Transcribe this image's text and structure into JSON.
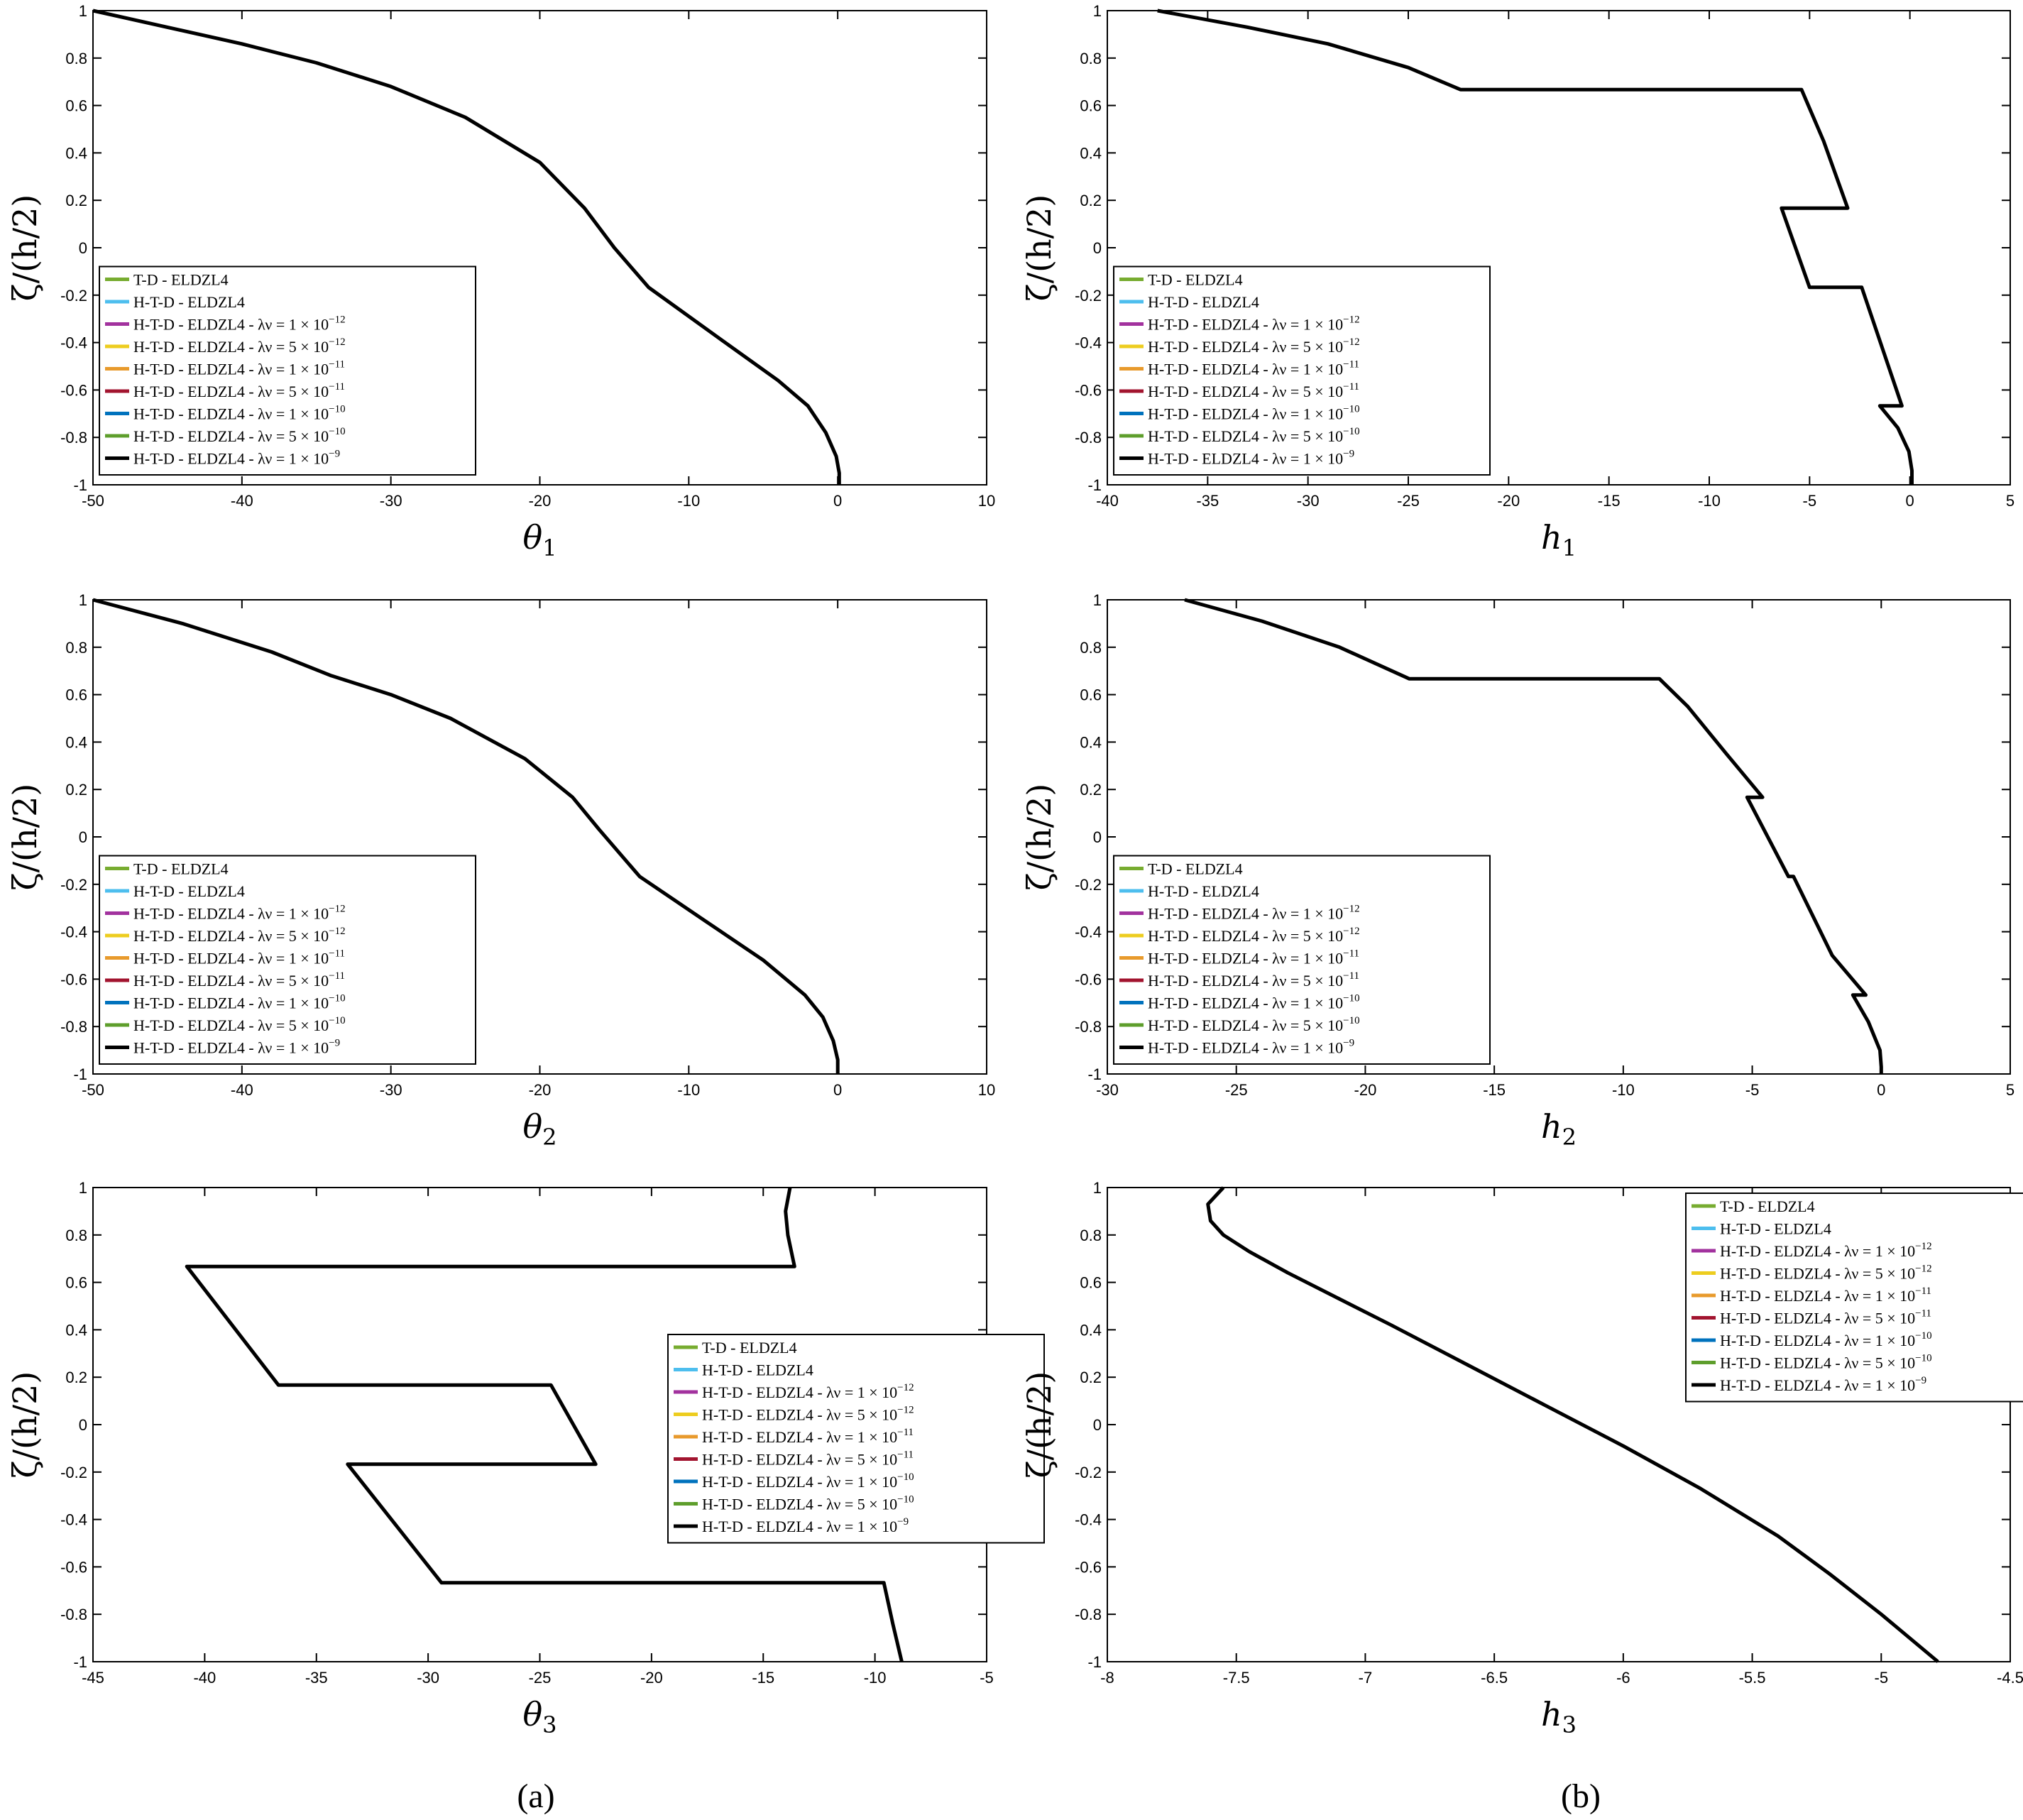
{
  "panel_labels": [
    "(a)",
    "(b)"
  ],
  "legend": {
    "entries": [
      {
        "label": "T-D - ELDZL4",
        "suffix": "",
        "exp": "",
        "color": "#77ac30"
      },
      {
        "label": "H-T-D - ELDZL4",
        "suffix": "",
        "exp": "",
        "color": "#4dbeee"
      },
      {
        "label": "H-T-D - ELDZL4 - λν = 1 × 10",
        "suffix": "",
        "exp": "−12",
        "color": "#a2329e"
      },
      {
        "label": "H-T-D - ELDZL4 - λν = 5 × 10",
        "suffix": "",
        "exp": "−12",
        "color": "#edcd1f"
      },
      {
        "label": "H-T-D - ELDZL4 - λν = 1 × 10",
        "suffix": "",
        "exp": "−11",
        "color": "#e89a2c"
      },
      {
        "label": "H-T-D - ELDZL4 - λν = 5 × 10",
        "suffix": "",
        "exp": "−11",
        "color": "#a2142f"
      },
      {
        "label": "H-T-D - ELDZL4 - λν = 1 × 10",
        "suffix": "",
        "exp": "−10",
        "color": "#0072bd"
      },
      {
        "label": "H-T-D - ELDZL4 - λν = 5 × 10",
        "suffix": "",
        "exp": "−10",
        "color": "#5e9e2c"
      },
      {
        "label": "H-T-D - ELDZL4 - λν = 1 × 10",
        "suffix": "",
        "exp": "−9",
        "color": "#000000"
      }
    ]
  },
  "chart_data": [
    {
      "type": "line",
      "xlabel": "θ",
      "xlabel_sub": "1",
      "ylabel": "ζ/(h/2)",
      "xlim": [
        -50,
        10
      ],
      "ylim": [
        -1,
        1
      ],
      "xticks": [
        -50,
        -40,
        -30,
        -20,
        -10,
        0,
        10
      ],
      "xtick_labels": [
        "-50",
        "-40",
        "-30",
        "-20",
        "-10",
        "0",
        "10"
      ],
      "yticks": [
        -1,
        -0.8,
        -0.6,
        -0.4,
        -0.2,
        0,
        0.2,
        0.4,
        0.6,
        0.8,
        1
      ],
      "ytick_labels": [
        "-1",
        "-0.8",
        "-0.6",
        "-0.4",
        "-0.2",
        "0",
        "0.2",
        "0.4",
        "0.6",
        "0.8",
        "1"
      ],
      "legend_position": "bottom-left",
      "series": [
        {
          "name": "H-T-D - ELDZL4 - λν = 1 × 10^-9",
          "color": "#000000",
          "x": [
            -50,
            -45,
            -40,
            -35,
            -30,
            -25,
            -20,
            -17,
            -15,
            -12.7,
            -8,
            -4,
            -2,
            -0.8,
            -0.1,
            0.1,
            0.1
          ],
          "y": [
            1,
            0.93,
            0.86,
            0.78,
            0.68,
            0.55,
            0.36,
            0.167,
            0.0,
            -0.167,
            -0.38,
            -0.56,
            -0.667,
            -0.78,
            -0.88,
            -0.95,
            -1
          ]
        }
      ]
    },
    {
      "type": "line",
      "xlabel": "h",
      "xlabel_sub": "1",
      "ylabel": "ζ/(h/2)",
      "xlim": [
        -40,
        5
      ],
      "ylim": [
        -1,
        1
      ],
      "xticks": [
        -40,
        -35,
        -30,
        -25,
        -20,
        -15,
        -10,
        -5,
        0,
        5
      ],
      "xtick_labels": [
        "-40",
        "-35",
        "-30",
        "-25",
        "-20",
        "-15",
        "-10",
        "-5",
        "0",
        "5"
      ],
      "yticks": [
        -1,
        -0.8,
        -0.6,
        -0.4,
        -0.2,
        0,
        0.2,
        0.4,
        0.6,
        0.8,
        1
      ],
      "ytick_labels": [
        "-1",
        "-0.8",
        "-0.6",
        "-0.4",
        "-0.2",
        "0",
        "0.2",
        "0.4",
        "0.6",
        "0.8",
        "1"
      ],
      "legend_position": "bottom-left",
      "series": [
        {
          "name": "H-T-D - ELDZL4 - λν = 1 × 10^-9",
          "color": "#000000",
          "x": [
            -37.5,
            -33,
            -29,
            -25,
            -22.4,
            -5.4,
            -4.3,
            -3.1,
            -6.4,
            -5,
            -2.4,
            -0.4,
            -1.5,
            -0.6,
            -0.05,
            0.1,
            0.1
          ],
          "y": [
            1,
            0.93,
            0.86,
            0.76,
            0.667,
            0.667,
            0.45,
            0.167,
            0.167,
            -0.167,
            -0.167,
            -0.667,
            -0.667,
            -0.76,
            -0.86,
            -0.94,
            -1
          ]
        }
      ]
    },
    {
      "type": "line",
      "xlabel": "θ",
      "xlabel_sub": "2",
      "ylabel": "ζ/(h/2)",
      "xlim": [
        -50,
        10
      ],
      "ylim": [
        -1,
        1
      ],
      "xticks": [
        -50,
        -40,
        -30,
        -20,
        -10,
        0,
        10
      ],
      "xtick_labels": [
        "-50",
        "-40",
        "-30",
        "-20",
        "-10",
        "0",
        "10"
      ],
      "yticks": [
        -1,
        -0.8,
        -0.6,
        -0.4,
        -0.2,
        0,
        0.2,
        0.4,
        0.6,
        0.8,
        1
      ],
      "ytick_labels": [
        "-1",
        "-0.8",
        "-0.6",
        "-0.4",
        "-0.2",
        "0",
        "0.2",
        "0.4",
        "0.6",
        "0.8",
        "1"
      ],
      "legend_position": "bottom-left",
      "series": [
        {
          "name": "H-T-D - ELDZL4 - λν = 1 × 10^-9",
          "color": "#000000",
          "x": [
            -50,
            -44,
            -38,
            -34,
            -30,
            -26,
            -21,
            -17.8,
            -16,
            -13.3,
            -9,
            -5,
            -2.2,
            -1,
            -0.3,
            0,
            0
          ],
          "y": [
            1,
            0.9,
            0.78,
            0.68,
            0.6,
            0.5,
            0.33,
            0.167,
            0.03,
            -0.167,
            -0.35,
            -0.52,
            -0.667,
            -0.76,
            -0.86,
            -0.94,
            -1
          ]
        }
      ]
    },
    {
      "type": "line",
      "xlabel": "h",
      "xlabel_sub": "2",
      "ylabel": "ζ/(h/2)",
      "xlim": [
        -30,
        5
      ],
      "ylim": [
        -1,
        1
      ],
      "xticks": [
        -30,
        -25,
        -20,
        -15,
        -10,
        -5,
        0,
        5
      ],
      "xtick_labels": [
        "-30",
        "-25",
        "-20",
        "-15",
        "-10",
        "-5",
        "0",
        "5"
      ],
      "yticks": [
        -1,
        -0.8,
        -0.6,
        -0.4,
        -0.2,
        0,
        0.2,
        0.4,
        0.6,
        0.8,
        1
      ],
      "ytick_labels": [
        "-1",
        "-0.8",
        "-0.6",
        "-0.4",
        "-0.2",
        "0",
        "0.2",
        "0.4",
        "0.6",
        "0.8",
        "1"
      ],
      "legend_position": "bottom-left",
      "series": [
        {
          "name": "H-T-D - ELDZL4 - λν = 1 × 10^-9",
          "color": "#000000",
          "x": [
            -27,
            -24,
            -21,
            -18.3,
            -8.6,
            -7.5,
            -6,
            -4.6,
            -5.2,
            -3.6,
            -3.4,
            -1.9,
            -0.6,
            -1.1,
            -0.5,
            -0.05,
            0,
            0
          ],
          "y": [
            1,
            0.91,
            0.8,
            0.667,
            0.667,
            0.55,
            0.35,
            0.167,
            0.167,
            -0.167,
            -0.167,
            -0.5,
            -0.667,
            -0.667,
            -0.78,
            -0.9,
            -0.97,
            -1
          ]
        }
      ]
    },
    {
      "type": "line",
      "xlabel": "θ",
      "xlabel_sub": "3",
      "ylabel": "ζ/(h/2)",
      "xlim": [
        -45,
        -5
      ],
      "ylim": [
        -1,
        1
      ],
      "xticks": [
        -45,
        -40,
        -35,
        -30,
        -25,
        -20,
        -15,
        -10,
        -5
      ],
      "xtick_labels": [
        "-45",
        "-40",
        "-35",
        "-30",
        "-25",
        "-20",
        "-15",
        "-10",
        "-5"
      ],
      "yticks": [
        -1,
        -0.8,
        -0.6,
        -0.4,
        -0.2,
        0,
        0.2,
        0.4,
        0.6,
        0.8,
        1
      ],
      "ytick_labels": [
        "-1",
        "-0.8",
        "-0.6",
        "-0.4",
        "-0.2",
        "0",
        "0.2",
        "0.4",
        "0.6",
        "0.8",
        "1"
      ],
      "legend_position": "right",
      "series": [
        {
          "name": "H-T-D - ELDZL4 - λν = 1 × 10^-9",
          "color": "#000000",
          "x": [
            -13.8,
            -14.0,
            -13.9,
            -13.6,
            -40.8,
            -36.7,
            -24.5,
            -22.5,
            -33.6,
            -29.4,
            -9.6,
            -9.2,
            -8.8
          ],
          "y": [
            1,
            0.9,
            0.8,
            0.667,
            0.667,
            0.167,
            0.167,
            -0.167,
            -0.167,
            -0.667,
            -0.667,
            -0.84,
            -1
          ]
        }
      ]
    },
    {
      "type": "line",
      "xlabel": "h",
      "xlabel_sub": "3",
      "ylabel": "ζ/(h/2)",
      "xlim": [
        -8,
        -4.5
      ],
      "ylim": [
        -1,
        1
      ],
      "xticks": [
        -8,
        -7.5,
        -7,
        -6.5,
        -6,
        -5.5,
        -5,
        -4.5
      ],
      "xtick_labels": [
        "-8",
        "-7.5",
        "-7",
        "-6.5",
        "-6",
        "-5.5",
        "-5",
        "-4.5"
      ],
      "yticks": [
        -1,
        -0.8,
        -0.6,
        -0.4,
        -0.2,
        0,
        0.2,
        0.4,
        0.6,
        0.8,
        1
      ],
      "ytick_labels": [
        "-1",
        "-0.8",
        "-0.6",
        "-0.4",
        "-0.2",
        "0",
        "0.2",
        "0.4",
        "0.6",
        "0.8",
        "1"
      ],
      "legend_position": "top-right",
      "series": [
        {
          "name": "H-T-D - ELDZL4 - λν = 1 × 10^-9",
          "color": "#000000",
          "x": [
            -7.55,
            -7.61,
            -7.6,
            -7.55,
            -7.45,
            -7.3,
            -7.1,
            -6.9,
            -6.6,
            -6.3,
            -6.0,
            -5.7,
            -5.4,
            -5.2,
            -5.0,
            -4.78
          ],
          "y": [
            1,
            0.93,
            0.86,
            0.8,
            0.73,
            0.64,
            0.53,
            0.42,
            0.25,
            0.08,
            -0.09,
            -0.27,
            -0.47,
            -0.63,
            -0.8,
            -1
          ]
        }
      ]
    }
  ]
}
